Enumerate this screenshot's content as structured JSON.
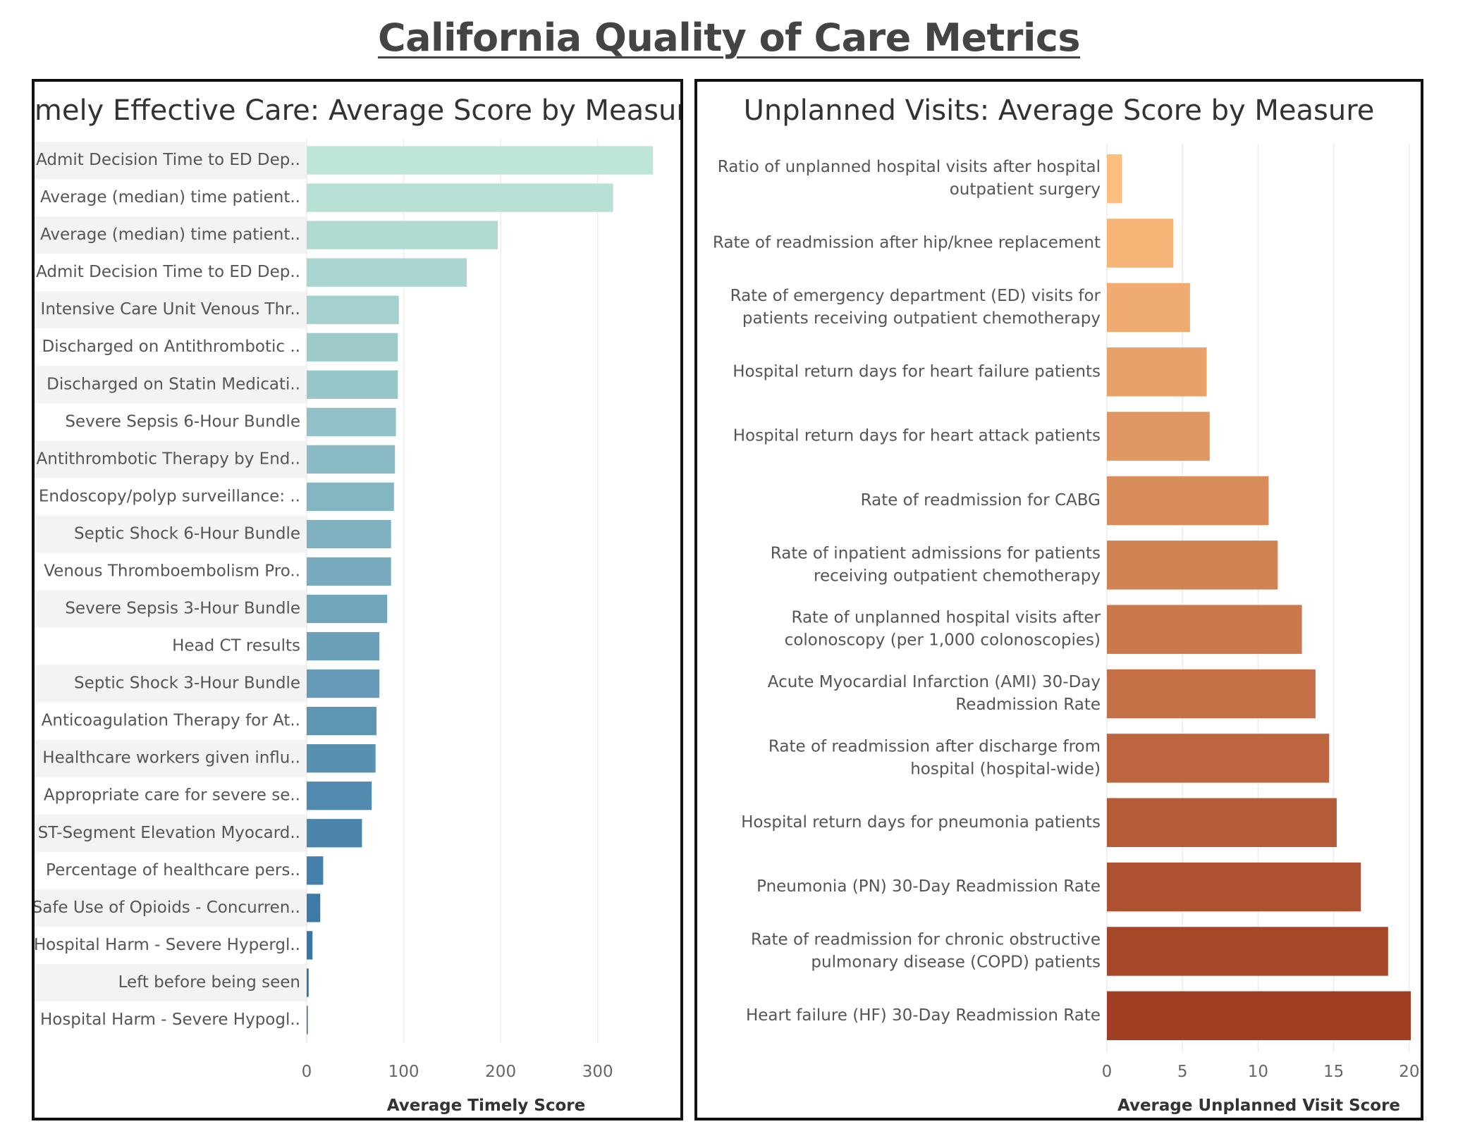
{
  "title": "California Quality of Care Metrics",
  "chart_data": [
    {
      "type": "bar",
      "orientation": "horizontal",
      "title": "Timely Effective Care: Average Score by Measure",
      "xlabel": "Average Timely Score",
      "ylabel": "",
      "xlim": [
        0,
        370
      ],
      "xticks": [
        0,
        100,
        200,
        300
      ],
      "grid": "vertical",
      "row_banding": true,
      "categories": [
        "Admit Decision Time to ED Dep..",
        "Average (median) time patient..",
        "Average (median) time patient..",
        "Admit Decision Time to ED Dep..",
        "Intensive Care Unit Venous Thr..",
        "Discharged on Antithrombotic ..",
        "Discharged on Statin Medicati..",
        "Severe Sepsis 6-Hour Bundle",
        "Antithrombotic Therapy by End..",
        "Endoscopy/polyp surveillance: ..",
        "Septic Shock 6-Hour Bundle",
        "Venous Thromboembolism Pro..",
        "Severe Sepsis 3-Hour Bundle",
        "Head CT results",
        "Septic Shock 3-Hour Bundle",
        "Anticoagulation Therapy for At..",
        "Healthcare workers given influ..",
        "Appropriate care for severe se..",
        "ST-Segment Elevation Myocard..",
        "Percentage of healthcare pers..",
        "Safe Use of Opioids - Concurren..",
        "Hospital Harm - Severe Hypergl..",
        "Left before being seen",
        "Hospital Harm - Severe Hypogl.."
      ],
      "values": [
        357,
        316,
        197,
        165,
        95,
        94,
        94,
        92,
        91,
        90,
        87,
        87,
        83,
        75,
        75,
        72,
        71,
        67,
        57,
        17,
        14,
        6,
        2,
        1
      ],
      "color_scale": [
        "#bde6d8",
        "#2c6aa0"
      ]
    },
    {
      "type": "bar",
      "orientation": "horizontal",
      "title": "Unplanned Visits: Average Score by Measure",
      "xlabel": "Average Unplanned Visit Score",
      "ylabel": "",
      "xlim": [
        0,
        20.1
      ],
      "xticks": [
        0,
        5,
        10,
        15,
        20
      ],
      "grid": "vertical",
      "categories": [
        [
          "Ratio of unplanned hospital visits after hospital",
          "outpatient surgery"
        ],
        [
          "Rate of readmission after hip/knee replacement"
        ],
        [
          "Rate of emergency department (ED) visits for",
          "patients receiving outpatient chemotherapy"
        ],
        [
          "Hospital return days for heart failure patients"
        ],
        [
          "Hospital return days for heart attack patients"
        ],
        [
          "Rate of readmission for CABG"
        ],
        [
          "Rate of inpatient admissions for patients",
          "receiving outpatient chemotherapy"
        ],
        [
          "Rate of unplanned hospital visits after",
          "colonoscopy (per 1,000 colonoscopies)"
        ],
        [
          "Acute Myocardial Infarction (AMI) 30-Day",
          "Readmission Rate"
        ],
        [
          "Rate of readmission after discharge from",
          "hospital (hospital-wide)"
        ],
        [
          "Hospital return days for pneumonia patients"
        ],
        [
          "Pneumonia (PN) 30-Day Readmission Rate"
        ],
        [
          "Rate of readmission for chronic obstructive",
          "pulmonary disease (COPD) patients"
        ],
        [
          "Heart failure (HF) 30-Day Readmission Rate"
        ]
      ],
      "values": [
        1.0,
        4.4,
        5.5,
        6.6,
        6.8,
        10.7,
        11.3,
        12.9,
        13.8,
        14.7,
        15.2,
        16.8,
        18.6,
        20.1
      ],
      "color_scale": [
        "#fdbf7e",
        "#a03d22"
      ]
    }
  ]
}
